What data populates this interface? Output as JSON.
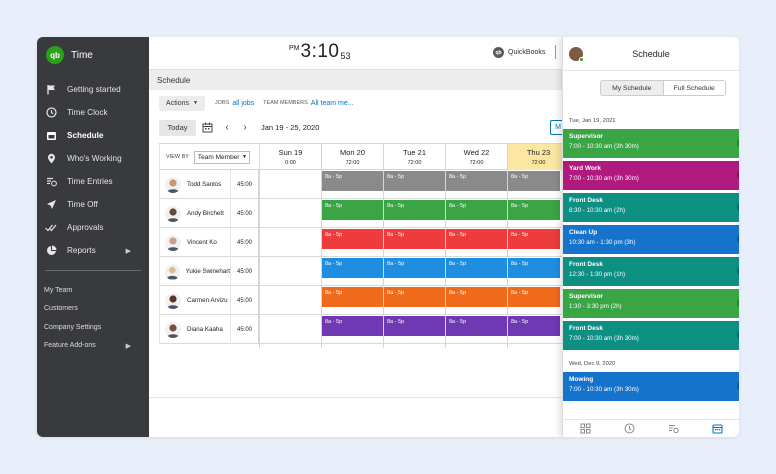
{
  "brand": {
    "logo": "qb",
    "name": "Time",
    "accent": "#2ca01c"
  },
  "sidebar": {
    "items": [
      {
        "label": "Getting started",
        "icon": "flag-icon"
      },
      {
        "label": "Time Clock",
        "icon": "clock-icon"
      },
      {
        "label": "Schedule",
        "icon": "calendar-icon",
        "active": true
      },
      {
        "label": "Who's Working",
        "icon": "map-pin-icon"
      },
      {
        "label": "Time Entries",
        "icon": "time-entries-icon"
      },
      {
        "label": "Time Off",
        "icon": "airplane-icon"
      },
      {
        "label": "Approvals",
        "icon": "double-check-icon"
      },
      {
        "label": "Reports",
        "icon": "pie-chart-icon",
        "has_submenu": true
      }
    ],
    "sub_items": [
      {
        "label": "My Team"
      },
      {
        "label": "Customers"
      },
      {
        "label": "Company Settings"
      },
      {
        "label": "Feature Add-ons",
        "has_submenu": true
      }
    ]
  },
  "header": {
    "clock_ampm": "PM",
    "clock_time": "3:10",
    "clock_seconds": "53",
    "qb_logo": "qb",
    "qb_label": "QuickBooks"
  },
  "schedule": {
    "section_title": "Schedule",
    "actions_label": "Actions",
    "jobs_label": "JOBS",
    "jobs_value": "all jobs",
    "team_label": "TEAM MEMBERS",
    "team_value": "All team me...",
    "today_label": "Today",
    "prev_label": "‹",
    "next_label": "›",
    "date_range": "Jan 19 - 25, 2020",
    "peek_label": "M",
    "viewby_label": "VIEW BY",
    "viewby_value": "Team Member",
    "days": [
      {
        "name": "Sun 19",
        "hours": "0:00"
      },
      {
        "name": "Mon 20",
        "hours": "72:00"
      },
      {
        "name": "Tue 21",
        "hours": "72:00"
      },
      {
        "name": "Wed 22",
        "hours": "72:00"
      },
      {
        "name": "Thu 23",
        "hours": "72:00",
        "highlight": true
      }
    ],
    "employees": [
      {
        "name": "Todd Santos",
        "hours": "45:00",
        "shift": "8a - 5p",
        "color": "#8a8a8a",
        "avatar_color": "#c69572"
      },
      {
        "name": "Andy Birchett",
        "hours": "45:00",
        "shift": "8a - 5p",
        "color": "#3aa545",
        "avatar_color": "#6b4a3a"
      },
      {
        "name": "Vincent Ko",
        "hours": "45:00",
        "shift": "8a - 5p",
        "color": "#ee3b3b",
        "avatar_color": "#c8a088"
      },
      {
        "name": "Yukie Swinehart",
        "hours": "45:00",
        "shift": "8a - 5p",
        "color": "#1e8fe0",
        "avatar_color": "#e0b98e"
      },
      {
        "name": "Carmen Arvizu",
        "hours": "45:00",
        "shift": "8a - 5p",
        "color": "#f06a1c",
        "avatar_color": "#5a3528"
      },
      {
        "name": "Diana Kaaha",
        "hours": "45:00",
        "shift": "8a - 5p",
        "color": "#6e39b3",
        "avatar_color": "#7a5038"
      }
    ]
  },
  "panel": {
    "title": "Schedule",
    "tab_my": "My Schedule",
    "tab_full": "Full Schedule",
    "groups": [
      {
        "date": "Tue, Jan 19, 2021",
        "shifts": [
          {
            "title": "Supervisor",
            "time": "7:00 - 10:30 am (3h 30m)",
            "color": "#3aa545"
          },
          {
            "title": "Yard Work",
            "time": "7:00 - 10:30 am (3h 30m)",
            "color": "#b0197e"
          },
          {
            "title": "Front Desk",
            "time": "8:30 - 10:30 am (2h)",
            "color": "#0e8f84"
          },
          {
            "title": "Clean Up",
            "time": "10:30 am - 1:30 pm (3h)",
            "color": "#1673cc"
          },
          {
            "title": "Front Desk",
            "time": "12:30 - 1:30 pm (1h)",
            "color": "#0e8f84"
          },
          {
            "title": "Supervisor",
            "time": "1:30 - 3:30 pm (2h)",
            "color": "#3aa545"
          },
          {
            "title": "Front Desk",
            "time": "7:00 - 10:30 am (3h 30m)",
            "color": "#0e8f84"
          }
        ]
      },
      {
        "date": "Wed, Dec 9, 2020",
        "shifts": [
          {
            "title": "Mowing",
            "time": "7:00 - 10:30 am (3h 30m)",
            "color": "#1673cc"
          }
        ]
      }
    ],
    "footer_icons": [
      "grid-icon",
      "clock-icon",
      "time-entries-icon",
      "calendar-icon"
    ]
  }
}
